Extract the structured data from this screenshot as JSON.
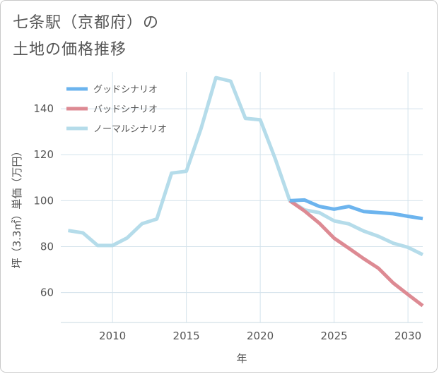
{
  "header": {
    "title_line1": "七条駅（京都府）の",
    "title_line2": "土地の価格推移"
  },
  "chart_data": {
    "type": "line",
    "xlabel": "年",
    "ylabel": "坪（3.3㎡）単価（万円）",
    "xlim": [
      2006.5,
      2031
    ],
    "ylim": [
      47,
      156
    ],
    "xticks": [
      2010,
      2015,
      2020,
      2025,
      2030
    ],
    "yticks": [
      60,
      80,
      100,
      120,
      140
    ],
    "grid": true,
    "legend_position": "top-left",
    "series": [
      {
        "name": "グッドシナリオ",
        "color": "#6cb4ee",
        "x": [
          2022,
          2023,
          2024,
          2025,
          2026,
          2027,
          2028,
          2029,
          2030,
          2031
        ],
        "values": [
          100,
          100.3,
          97.5,
          96.3,
          97.5,
          95.3,
          94.8,
          94.3,
          93.2,
          92.2
        ]
      },
      {
        "name": "バッドシナリオ",
        "color": "#dd8a93",
        "x": [
          2022,
          2023,
          2024,
          2025,
          2026,
          2027,
          2028,
          2029,
          2030,
          2031
        ],
        "values": [
          100,
          95.5,
          90.2,
          83.7,
          79.3,
          74.8,
          70.6,
          64.2,
          59.2,
          54.3
        ]
      },
      {
        "name": "ノーマルシナリオ",
        "color": "#b5dcea",
        "x": [
          2007,
          2008,
          2009,
          2010,
          2011,
          2012,
          2013,
          2014,
          2015,
          2016,
          2017,
          2018,
          2019,
          2020,
          2021,
          2022,
          2023,
          2024,
          2025,
          2026,
          2027,
          2028,
          2029,
          2030,
          2031
        ],
        "values": [
          87,
          86,
          80.5,
          80.5,
          83.8,
          90,
          92,
          112,
          112.8,
          131.5,
          153.5,
          152,
          135.8,
          135.2,
          118.5,
          100,
          96,
          94.8,
          91.2,
          89.9,
          86.8,
          84.5,
          81.5,
          79.7,
          76.5
        ]
      }
    ]
  }
}
